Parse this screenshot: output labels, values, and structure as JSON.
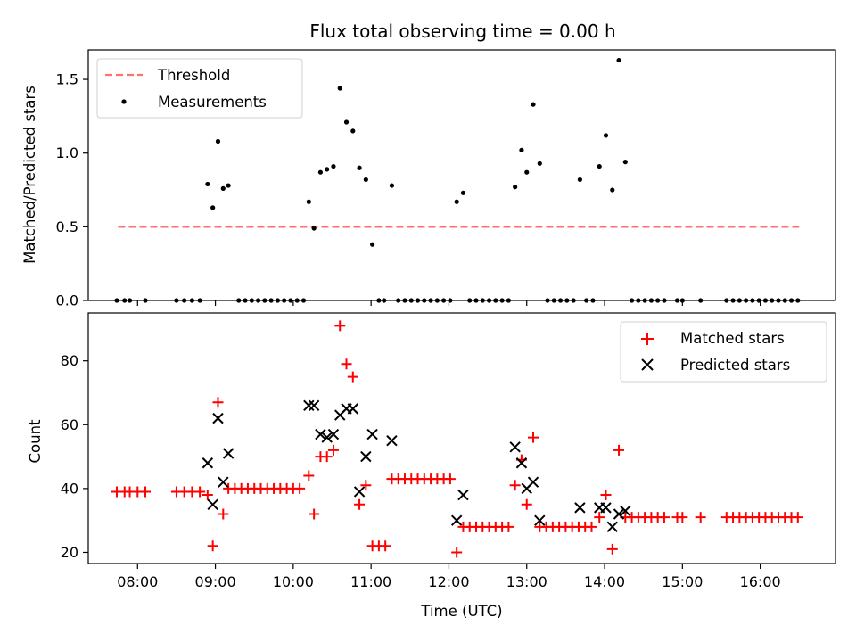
{
  "chart_data": [
    {
      "type": "scatter",
      "title": "Flux total observing time = 0.00 h",
      "xlabel": "",
      "ylabel": "Matched/Predicted stars",
      "xlim": [
        "07:22",
        "16:58"
      ],
      "ylim": [
        0,
        1.7
      ],
      "yticks": [
        "0.0",
        "0.5",
        "1.0",
        "1.5"
      ],
      "legend_position": "top-left",
      "threshold": {
        "name": "Threshold",
        "y": 0.5,
        "x_range": [
          "07:45",
          "16:30"
        ],
        "color": "#ff7070",
        "style": "dashed"
      },
      "series": [
        {
          "name": "Measurements",
          "color": "#000000",
          "marker": "dot",
          "points": [
            {
              "x": "07:44",
              "y": 0
            },
            {
              "x": "07:50",
              "y": 0
            },
            {
              "x": "07:54",
              "y": 0
            },
            {
              "x": "08:06",
              "y": 0
            },
            {
              "x": "08:30",
              "y": 0
            },
            {
              "x": "08:36",
              "y": 0
            },
            {
              "x": "08:42",
              "y": 0
            },
            {
              "x": "08:48",
              "y": 0
            },
            {
              "x": "08:54",
              "y": 0.79
            },
            {
              "x": "08:58",
              "y": 0.63
            },
            {
              "x": "09:02",
              "y": 1.08
            },
            {
              "x": "09:06",
              "y": 0.76
            },
            {
              "x": "09:10",
              "y": 0.78
            },
            {
              "x": "09:18",
              "y": 0
            },
            {
              "x": "09:23",
              "y": 0
            },
            {
              "x": "09:28",
              "y": 0
            },
            {
              "x": "09:33",
              "y": 0
            },
            {
              "x": "09:38",
              "y": 0
            },
            {
              "x": "09:43",
              "y": 0
            },
            {
              "x": "09:48",
              "y": 0
            },
            {
              "x": "09:53",
              "y": 0
            },
            {
              "x": "09:58",
              "y": 0
            },
            {
              "x": "10:03",
              "y": 0
            },
            {
              "x": "10:08",
              "y": 0
            },
            {
              "x": "10:12",
              "y": 0.67
            },
            {
              "x": "10:16",
              "y": 0.49
            },
            {
              "x": "10:21",
              "y": 0.87
            },
            {
              "x": "10:26",
              "y": 0.89
            },
            {
              "x": "10:31",
              "y": 0.91
            },
            {
              "x": "10:36",
              "y": 1.44
            },
            {
              "x": "10:41",
              "y": 1.21
            },
            {
              "x": "10:46",
              "y": 1.15
            },
            {
              "x": "10:51",
              "y": 0.9
            },
            {
              "x": "10:56",
              "y": 0.82
            },
            {
              "x": "11:01",
              "y": 0.38
            },
            {
              "x": "11:06",
              "y": 0
            },
            {
              "x": "11:10",
              "y": 0
            },
            {
              "x": "11:16",
              "y": 0.78
            },
            {
              "x": "11:21",
              "y": 0
            },
            {
              "x": "11:26",
              "y": 0
            },
            {
              "x": "11:31",
              "y": 0
            },
            {
              "x": "11:36",
              "y": 0
            },
            {
              "x": "11:41",
              "y": 0
            },
            {
              "x": "11:46",
              "y": 0
            },
            {
              "x": "11:51",
              "y": 0
            },
            {
              "x": "11:56",
              "y": 0
            },
            {
              "x": "12:01",
              "y": 0
            },
            {
              "x": "12:06",
              "y": 0.67
            },
            {
              "x": "12:11",
              "y": 0.73
            },
            {
              "x": "12:16",
              "y": 0
            },
            {
              "x": "12:21",
              "y": 0
            },
            {
              "x": "12:26",
              "y": 0
            },
            {
              "x": "12:31",
              "y": 0
            },
            {
              "x": "12:36",
              "y": 0
            },
            {
              "x": "12:41",
              "y": 0
            },
            {
              "x": "12:46",
              "y": 0
            },
            {
              "x": "12:51",
              "y": 0.77
            },
            {
              "x": "12:56",
              "y": 1.02
            },
            {
              "x": "13:00",
              "y": 0.87
            },
            {
              "x": "13:05",
              "y": 1.33
            },
            {
              "x": "13:10",
              "y": 0.93
            },
            {
              "x": "13:16",
              "y": 0
            },
            {
              "x": "13:21",
              "y": 0
            },
            {
              "x": "13:26",
              "y": 0
            },
            {
              "x": "13:31",
              "y": 0
            },
            {
              "x": "13:36",
              "y": 0
            },
            {
              "x": "13:41",
              "y": 0.82
            },
            {
              "x": "13:46",
              "y": 0
            },
            {
              "x": "13:51",
              "y": 0
            },
            {
              "x": "13:56",
              "y": 0.91
            },
            {
              "x": "14:01",
              "y": 1.12
            },
            {
              "x": "14:06",
              "y": 0.75
            },
            {
              "x": "14:11",
              "y": 1.63
            },
            {
              "x": "14:16",
              "y": 0.94
            },
            {
              "x": "14:21",
              "y": 0
            },
            {
              "x": "14:26",
              "y": 0
            },
            {
              "x": "14:31",
              "y": 0
            },
            {
              "x": "14:36",
              "y": 0
            },
            {
              "x": "14:41",
              "y": 0
            },
            {
              "x": "14:46",
              "y": 0
            },
            {
              "x": "14:56",
              "y": 0
            },
            {
              "x": "15:00",
              "y": 0
            },
            {
              "x": "15:14",
              "y": 0
            },
            {
              "x": "15:34",
              "y": 0
            },
            {
              "x": "15:39",
              "y": 0
            },
            {
              "x": "15:44",
              "y": 0
            },
            {
              "x": "15:49",
              "y": 0
            },
            {
              "x": "15:54",
              "y": 0
            },
            {
              "x": "15:59",
              "y": 0
            },
            {
              "x": "16:04",
              "y": 0
            },
            {
              "x": "16:09",
              "y": 0
            },
            {
              "x": "16:14",
              "y": 0
            },
            {
              "x": "16:19",
              "y": 0
            },
            {
              "x": "16:24",
              "y": 0
            },
            {
              "x": "16:29",
              "y": 0
            }
          ]
        }
      ]
    },
    {
      "type": "scatter",
      "title": "",
      "xlabel": "Time (UTC)",
      "ylabel": "Count",
      "xlim": [
        "07:22",
        "16:58"
      ],
      "ylim": [
        16.5,
        95
      ],
      "yticks": [
        "20",
        "40",
        "60",
        "80"
      ],
      "xticks": [
        "08:00",
        "09:00",
        "10:00",
        "11:00",
        "12:00",
        "13:00",
        "14:00",
        "15:00",
        "16:00"
      ],
      "legend_position": "top-right",
      "series": [
        {
          "name": "Matched stars",
          "color": "#ff0000",
          "marker": "plus",
          "points": [
            {
              "x": "07:44",
              "y": 39
            },
            {
              "x": "07:50",
              "y": 39
            },
            {
              "x": "07:54",
              "y": 39
            },
            {
              "x": "08:00",
              "y": 39
            },
            {
              "x": "08:06",
              "y": 39
            },
            {
              "x": "08:30",
              "y": 39
            },
            {
              "x": "08:36",
              "y": 39
            },
            {
              "x": "08:42",
              "y": 39
            },
            {
              "x": "08:48",
              "y": 39
            },
            {
              "x": "08:54",
              "y": 38
            },
            {
              "x": "08:58",
              "y": 22
            },
            {
              "x": "09:02",
              "y": 67
            },
            {
              "x": "09:06",
              "y": 32
            },
            {
              "x": "09:10",
              "y": 40
            },
            {
              "x": "09:15",
              "y": 40
            },
            {
              "x": "09:20",
              "y": 40
            },
            {
              "x": "09:25",
              "y": 40
            },
            {
              "x": "09:30",
              "y": 40
            },
            {
              "x": "09:35",
              "y": 40
            },
            {
              "x": "09:40",
              "y": 40
            },
            {
              "x": "09:45",
              "y": 40
            },
            {
              "x": "09:50",
              "y": 40
            },
            {
              "x": "09:55",
              "y": 40
            },
            {
              "x": "10:00",
              "y": 40
            },
            {
              "x": "10:05",
              "y": 40
            },
            {
              "x": "10:12",
              "y": 44
            },
            {
              "x": "10:16",
              "y": 32
            },
            {
              "x": "10:21",
              "y": 50
            },
            {
              "x": "10:26",
              "y": 50
            },
            {
              "x": "10:31",
              "y": 52
            },
            {
              "x": "10:36",
              "y": 91
            },
            {
              "x": "10:41",
              "y": 79
            },
            {
              "x": "10:46",
              "y": 75
            },
            {
              "x": "10:51",
              "y": 35
            },
            {
              "x": "10:56",
              "y": 41
            },
            {
              "x": "11:01",
              "y": 22
            },
            {
              "x": "11:06",
              "y": 22
            },
            {
              "x": "11:11",
              "y": 22
            },
            {
              "x": "11:16",
              "y": 43
            },
            {
              "x": "11:21",
              "y": 43
            },
            {
              "x": "11:26",
              "y": 43
            },
            {
              "x": "11:31",
              "y": 43
            },
            {
              "x": "11:36",
              "y": 43
            },
            {
              "x": "11:41",
              "y": 43
            },
            {
              "x": "11:46",
              "y": 43
            },
            {
              "x": "11:51",
              "y": 43
            },
            {
              "x": "11:56",
              "y": 43
            },
            {
              "x": "12:01",
              "y": 43
            },
            {
              "x": "12:06",
              "y": 20
            },
            {
              "x": "12:11",
              "y": 28
            },
            {
              "x": "12:16",
              "y": 28
            },
            {
              "x": "12:21",
              "y": 28
            },
            {
              "x": "12:26",
              "y": 28
            },
            {
              "x": "12:31",
              "y": 28
            },
            {
              "x": "12:36",
              "y": 28
            },
            {
              "x": "12:41",
              "y": 28
            },
            {
              "x": "12:46",
              "y": 28
            },
            {
              "x": "12:51",
              "y": 41
            },
            {
              "x": "12:56",
              "y": 49
            },
            {
              "x": "13:00",
              "y": 35
            },
            {
              "x": "13:05",
              "y": 56
            },
            {
              "x": "13:10",
              "y": 28
            },
            {
              "x": "13:15",
              "y": 28
            },
            {
              "x": "13:20",
              "y": 28
            },
            {
              "x": "13:25",
              "y": 28
            },
            {
              "x": "13:30",
              "y": 28
            },
            {
              "x": "13:35",
              "y": 28
            },
            {
              "x": "13:40",
              "y": 28
            },
            {
              "x": "13:45",
              "y": 28
            },
            {
              "x": "13:50",
              "y": 28
            },
            {
              "x": "13:56",
              "y": 31
            },
            {
              "x": "14:01",
              "y": 38
            },
            {
              "x": "14:06",
              "y": 21
            },
            {
              "x": "14:11",
              "y": 52
            },
            {
              "x": "14:16",
              "y": 31
            },
            {
              "x": "14:21",
              "y": 31
            },
            {
              "x": "14:26",
              "y": 31
            },
            {
              "x": "14:31",
              "y": 31
            },
            {
              "x": "14:36",
              "y": 31
            },
            {
              "x": "14:41",
              "y": 31
            },
            {
              "x": "14:46",
              "y": 31
            },
            {
              "x": "14:56",
              "y": 31
            },
            {
              "x": "15:00",
              "y": 31
            },
            {
              "x": "15:14",
              "y": 31
            },
            {
              "x": "15:34",
              "y": 31
            },
            {
              "x": "15:39",
              "y": 31
            },
            {
              "x": "15:44",
              "y": 31
            },
            {
              "x": "15:49",
              "y": 31
            },
            {
              "x": "15:54",
              "y": 31
            },
            {
              "x": "15:59",
              "y": 31
            },
            {
              "x": "16:04",
              "y": 31
            },
            {
              "x": "16:09",
              "y": 31
            },
            {
              "x": "16:14",
              "y": 31
            },
            {
              "x": "16:19",
              "y": 31
            },
            {
              "x": "16:24",
              "y": 31
            },
            {
              "x": "16:29",
              "y": 31
            }
          ]
        },
        {
          "name": "Predicted stars",
          "color": "#000000",
          "marker": "x",
          "points": [
            {
              "x": "08:54",
              "y": 48
            },
            {
              "x": "08:58",
              "y": 35
            },
            {
              "x": "09:02",
              "y": 62
            },
            {
              "x": "09:06",
              "y": 42
            },
            {
              "x": "09:10",
              "y": 51
            },
            {
              "x": "10:12",
              "y": 66
            },
            {
              "x": "10:16",
              "y": 66
            },
            {
              "x": "10:21",
              "y": 57
            },
            {
              "x": "10:26",
              "y": 56
            },
            {
              "x": "10:31",
              "y": 57
            },
            {
              "x": "10:36",
              "y": 63
            },
            {
              "x": "10:41",
              "y": 65
            },
            {
              "x": "10:46",
              "y": 65
            },
            {
              "x": "10:51",
              "y": 39
            },
            {
              "x": "10:56",
              "y": 50
            },
            {
              "x": "11:01",
              "y": 57
            },
            {
              "x": "11:16",
              "y": 55
            },
            {
              "x": "12:06",
              "y": 30
            },
            {
              "x": "12:11",
              "y": 38
            },
            {
              "x": "12:51",
              "y": 53
            },
            {
              "x": "12:56",
              "y": 48
            },
            {
              "x": "13:00",
              "y": 40
            },
            {
              "x": "13:05",
              "y": 42
            },
            {
              "x": "13:10",
              "y": 30
            },
            {
              "x": "13:41",
              "y": 34
            },
            {
              "x": "13:56",
              "y": 34
            },
            {
              "x": "14:01",
              "y": 34
            },
            {
              "x": "14:06",
              "y": 28
            },
            {
              "x": "14:11",
              "y": 32
            },
            {
              "x": "14:16",
              "y": 33
            }
          ]
        }
      ]
    }
  ]
}
